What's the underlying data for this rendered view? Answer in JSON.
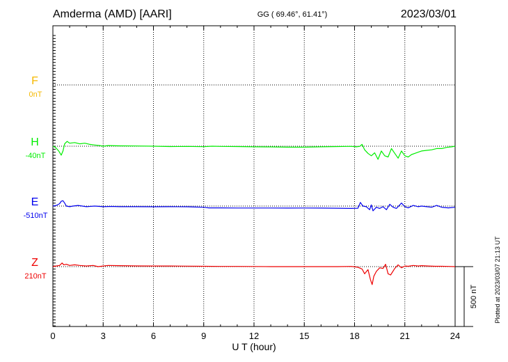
{
  "header": {
    "station": "Amderma (AMD)  [AARI]",
    "coords": "GG ( 69.46°,  61.41°)",
    "date": "2023/03/01"
  },
  "footer": {
    "plotted": "Plotted at 2023/03/07 21:13 UT"
  },
  "chart_data": {
    "type": "line",
    "title": "Amderma (AMD)  [AARI]",
    "xlabel": "U T (hour)",
    "ylabel": "",
    "xlim": [
      0,
      24
    ],
    "x_ticks": [
      "0",
      "3",
      "6",
      "9",
      "12",
      "15",
      "18",
      "21",
      "24"
    ],
    "grid": true,
    "scale_bar": {
      "label": "500 nT",
      "value": 500
    },
    "series": [
      {
        "name": "F",
        "baseline_label": "0nT",
        "color": "#f5b800",
        "x": [],
        "values": []
      },
      {
        "name": "H",
        "baseline_label": "-40nT",
        "color": "#00ee00",
        "x": [
          0,
          0.15,
          0.35,
          0.5,
          0.6,
          0.7,
          0.85,
          1.0,
          1.3,
          1.6,
          1.9,
          2.2,
          2.5,
          2.8,
          3.0,
          3.3,
          4,
          5,
          6,
          7,
          8,
          9,
          9.5,
          10,
          11,
          12,
          13,
          14,
          15,
          16,
          17,
          17.8,
          18.1,
          18.3,
          18.45,
          18.6,
          18.8,
          19.0,
          19.2,
          19.4,
          19.6,
          19.8,
          20.0,
          20.2,
          20.4,
          20.6,
          20.8,
          21.0,
          21.2,
          21.4,
          21.6,
          21.8,
          22.0,
          22.3,
          22.6,
          22.9,
          23.2,
          23.5,
          23.8,
          24.0
        ],
        "values": [
          0,
          -10,
          -40,
          -75,
          -40,
          20,
          40,
          25,
          30,
          20,
          25,
          15,
          10,
          5,
          0,
          5,
          3,
          2,
          0,
          -3,
          -2,
          -4,
          0,
          -2,
          -3,
          -5,
          -6,
          -8,
          -8,
          -5,
          -3,
          -1,
          -5,
          -2,
          15,
          -30,
          -60,
          -80,
          -55,
          -110,
          -40,
          -80,
          -90,
          -20,
          -60,
          -100,
          -40,
          -80,
          -90,
          -70,
          -60,
          -50,
          -40,
          -35,
          -30,
          -20,
          -20,
          -10,
          -5,
          0
        ]
      },
      {
        "name": "E",
        "baseline_label": "-510nT",
        "color": "#0000ee",
        "x": [
          0,
          0.2,
          0.4,
          0.5,
          0.6,
          0.7,
          0.8,
          1.0,
          1.2,
          1.5,
          2.0,
          2.5,
          3.0,
          3.5,
          4,
          5,
          6,
          7,
          8,
          8.5,
          9,
          9.3,
          10,
          11,
          12,
          13,
          14,
          15,
          16,
          17,
          17.8,
          18.2,
          18.35,
          18.5,
          18.7,
          18.9,
          19.0,
          19.1,
          19.3,
          19.5,
          19.7,
          19.9,
          20.1,
          20.3,
          20.5,
          20.8,
          21.0,
          21.2,
          21.5,
          21.8,
          22.0,
          22.3,
          22.6,
          22.9,
          23.2,
          23.6,
          24.0
        ],
        "values": [
          0,
          5,
          20,
          40,
          45,
          25,
          0,
          -5,
          0,
          5,
          -5,
          0,
          -5,
          -3,
          -5,
          -5,
          -6,
          -5,
          -6,
          -8,
          -10,
          -15,
          -15,
          -16,
          -16,
          -16,
          -17,
          -16,
          -17,
          -18,
          -20,
          -18,
          30,
          0,
          -5,
          -30,
          10,
          -40,
          -10,
          -20,
          -5,
          -30,
          15,
          -10,
          -20,
          25,
          -5,
          -15,
          5,
          -5,
          0,
          -5,
          -10,
          5,
          -10,
          -15,
          -10
        ]
      },
      {
        "name": "Z",
        "baseline_label": "210nT",
        "color": "#ee0000",
        "x": [
          0,
          0.2,
          0.4,
          0.55,
          0.65,
          0.8,
          1.0,
          1.3,
          1.6,
          2.0,
          2.4,
          2.7,
          3.0,
          3.3,
          4,
          5,
          6,
          7,
          8,
          9,
          10,
          11,
          12,
          13,
          14,
          15,
          16,
          17,
          17.8,
          18.2,
          18.45,
          18.6,
          18.8,
          18.95,
          19.05,
          19.15,
          19.3,
          19.5,
          19.7,
          19.85,
          20.0,
          20.15,
          20.4,
          20.6,
          20.8,
          21.0,
          21.2,
          21.5,
          21.8,
          22.0,
          22.4,
          22.8,
          23.2,
          23.6,
          24.0
        ],
        "values": [
          0,
          5,
          10,
          30,
          15,
          20,
          10,
          15,
          10,
          5,
          10,
          0,
          5,
          10,
          8,
          6,
          5,
          5,
          4,
          3,
          2,
          2,
          1,
          0,
          0,
          0,
          0,
          0,
          2,
          -5,
          -20,
          -60,
          -25,
          -110,
          -150,
          -80,
          -40,
          -10,
          -15,
          20,
          -60,
          -70,
          -15,
          15,
          -10,
          5,
          3,
          10,
          5,
          8,
          5,
          3,
          3,
          2,
          0
        ]
      }
    ]
  }
}
